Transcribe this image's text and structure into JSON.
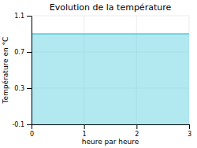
{
  "chart_data": {
    "type": "area",
    "title": "Evolution de la température",
    "xlabel": "heure par heure",
    "ylabel": "Température en °C",
    "x": [
      0,
      3
    ],
    "values": [
      0.9,
      0.9
    ],
    "color": "#55ccdd",
    "xlim": [
      0,
      3
    ],
    "ylim": [
      -0.1,
      1.1
    ],
    "xticks": [
      0,
      1,
      2,
      3
    ],
    "yticks": [
      -0.1,
      0.3,
      0.7,
      1.1
    ],
    "grid": true
  }
}
